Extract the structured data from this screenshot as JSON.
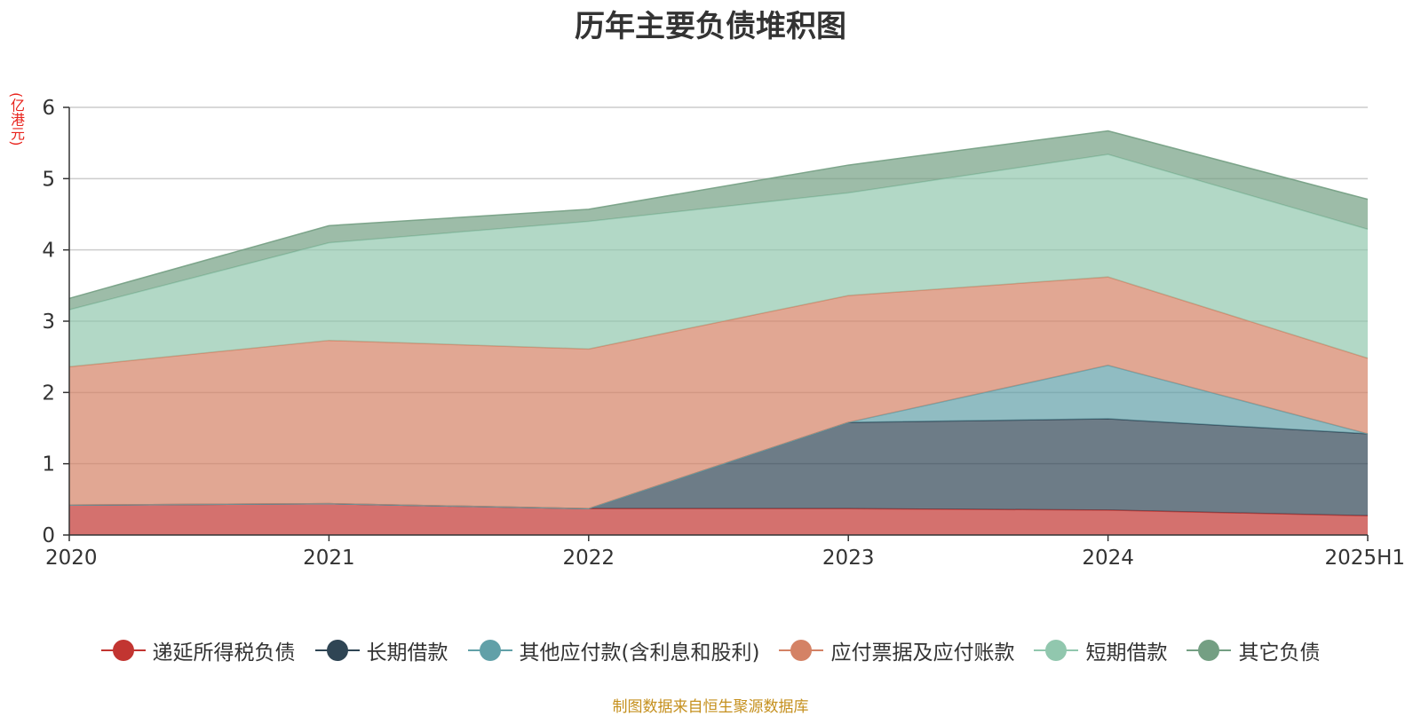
{
  "chart_data": {
    "type": "area",
    "stacked": true,
    "title": "历年主要负债堆积图",
    "y_unit": "(亿港元)",
    "categories": [
      "2020",
      "2021",
      "2022",
      "2023",
      "2024",
      "2025H1"
    ],
    "ylim": [
      0,
      6
    ],
    "yticks": [
      0,
      1,
      2,
      3,
      4,
      5,
      6
    ],
    "grid": true,
    "legend_position": "bottom",
    "series": [
      {
        "name": "递延所得税负债",
        "color": "#c23531",
        "values": [
          0.42,
          0.44,
          0.37,
          0.37,
          0.35,
          0.27
        ]
      },
      {
        "name": "长期借款",
        "color": "#2f4554",
        "values": [
          0.0,
          0.0,
          0.0,
          1.21,
          1.28,
          1.15
        ]
      },
      {
        "name": "其他应付款(含利息和股利)",
        "color": "#61a0a8",
        "values": [
          0.0,
          0.0,
          0.0,
          0.0,
          0.75,
          0.0
        ]
      },
      {
        "name": "应付票据及应付账款",
        "color": "#d48265",
        "values": [
          1.94,
          2.29,
          2.24,
          1.78,
          1.24,
          1.06
        ]
      },
      {
        "name": "短期借款",
        "color": "#91c7ae",
        "values": [
          0.8,
          1.37,
          1.79,
          1.44,
          1.72,
          1.81
        ]
      },
      {
        "name": "其它负债",
        "color": "#749f83",
        "values": [
          0.16,
          0.24,
          0.17,
          0.39,
          0.33,
          0.42
        ]
      }
    ]
  },
  "source_note": "制图数据来自恒生聚源数据库"
}
